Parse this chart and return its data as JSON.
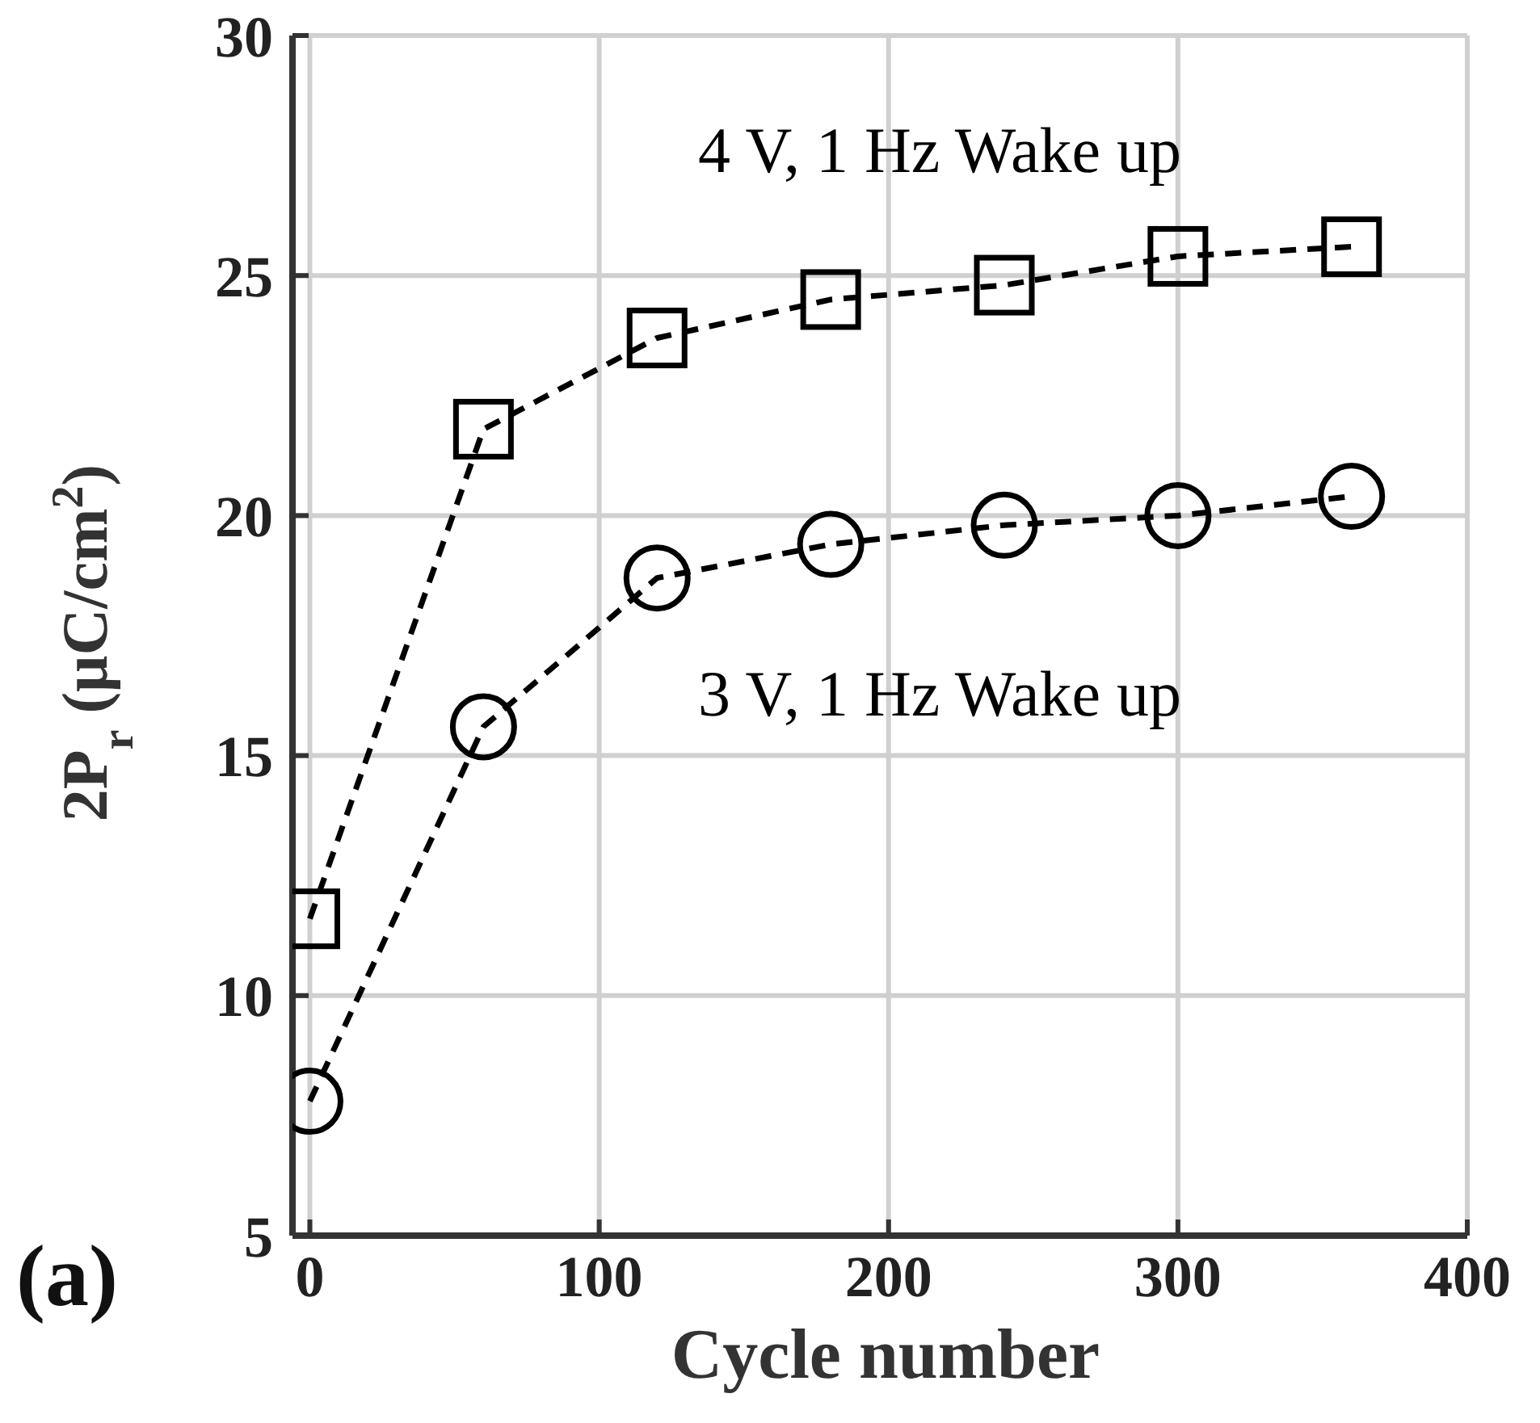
{
  "chart_data": {
    "type": "line",
    "xlabel": "Cycle number",
    "ylabel": "2P$_{r}$ (μC/cm$^{2}$)",
    "annotations": [
      "(a)"
    ],
    "x": [
      0,
      60,
      120,
      180,
      240,
      300,
      360
    ],
    "xlim": [
      -6,
      400
    ],
    "xticks": [
      0,
      100,
      200,
      300,
      400
    ],
    "ylim": [
      5,
      30
    ],
    "yticks": [
      5,
      10,
      15,
      20,
      25,
      30
    ],
    "grid": true,
    "legend": false,
    "series": [
      {
        "name": "4 V, 1 Hz Wake up",
        "color": "#000000",
        "marker": "square",
        "line_style": "dashed",
        "values": [
          11.6,
          21.8,
          23.7,
          24.5,
          24.8,
          25.4,
          25.6
        ]
      },
      {
        "name": "3 V, 1 Hz Wake up",
        "color": "#000000",
        "marker": "circle",
        "line_style": "dashed",
        "values": [
          7.8,
          15.6,
          18.7,
          19.4,
          19.8,
          20.0,
          20.4
        ]
      }
    ]
  }
}
